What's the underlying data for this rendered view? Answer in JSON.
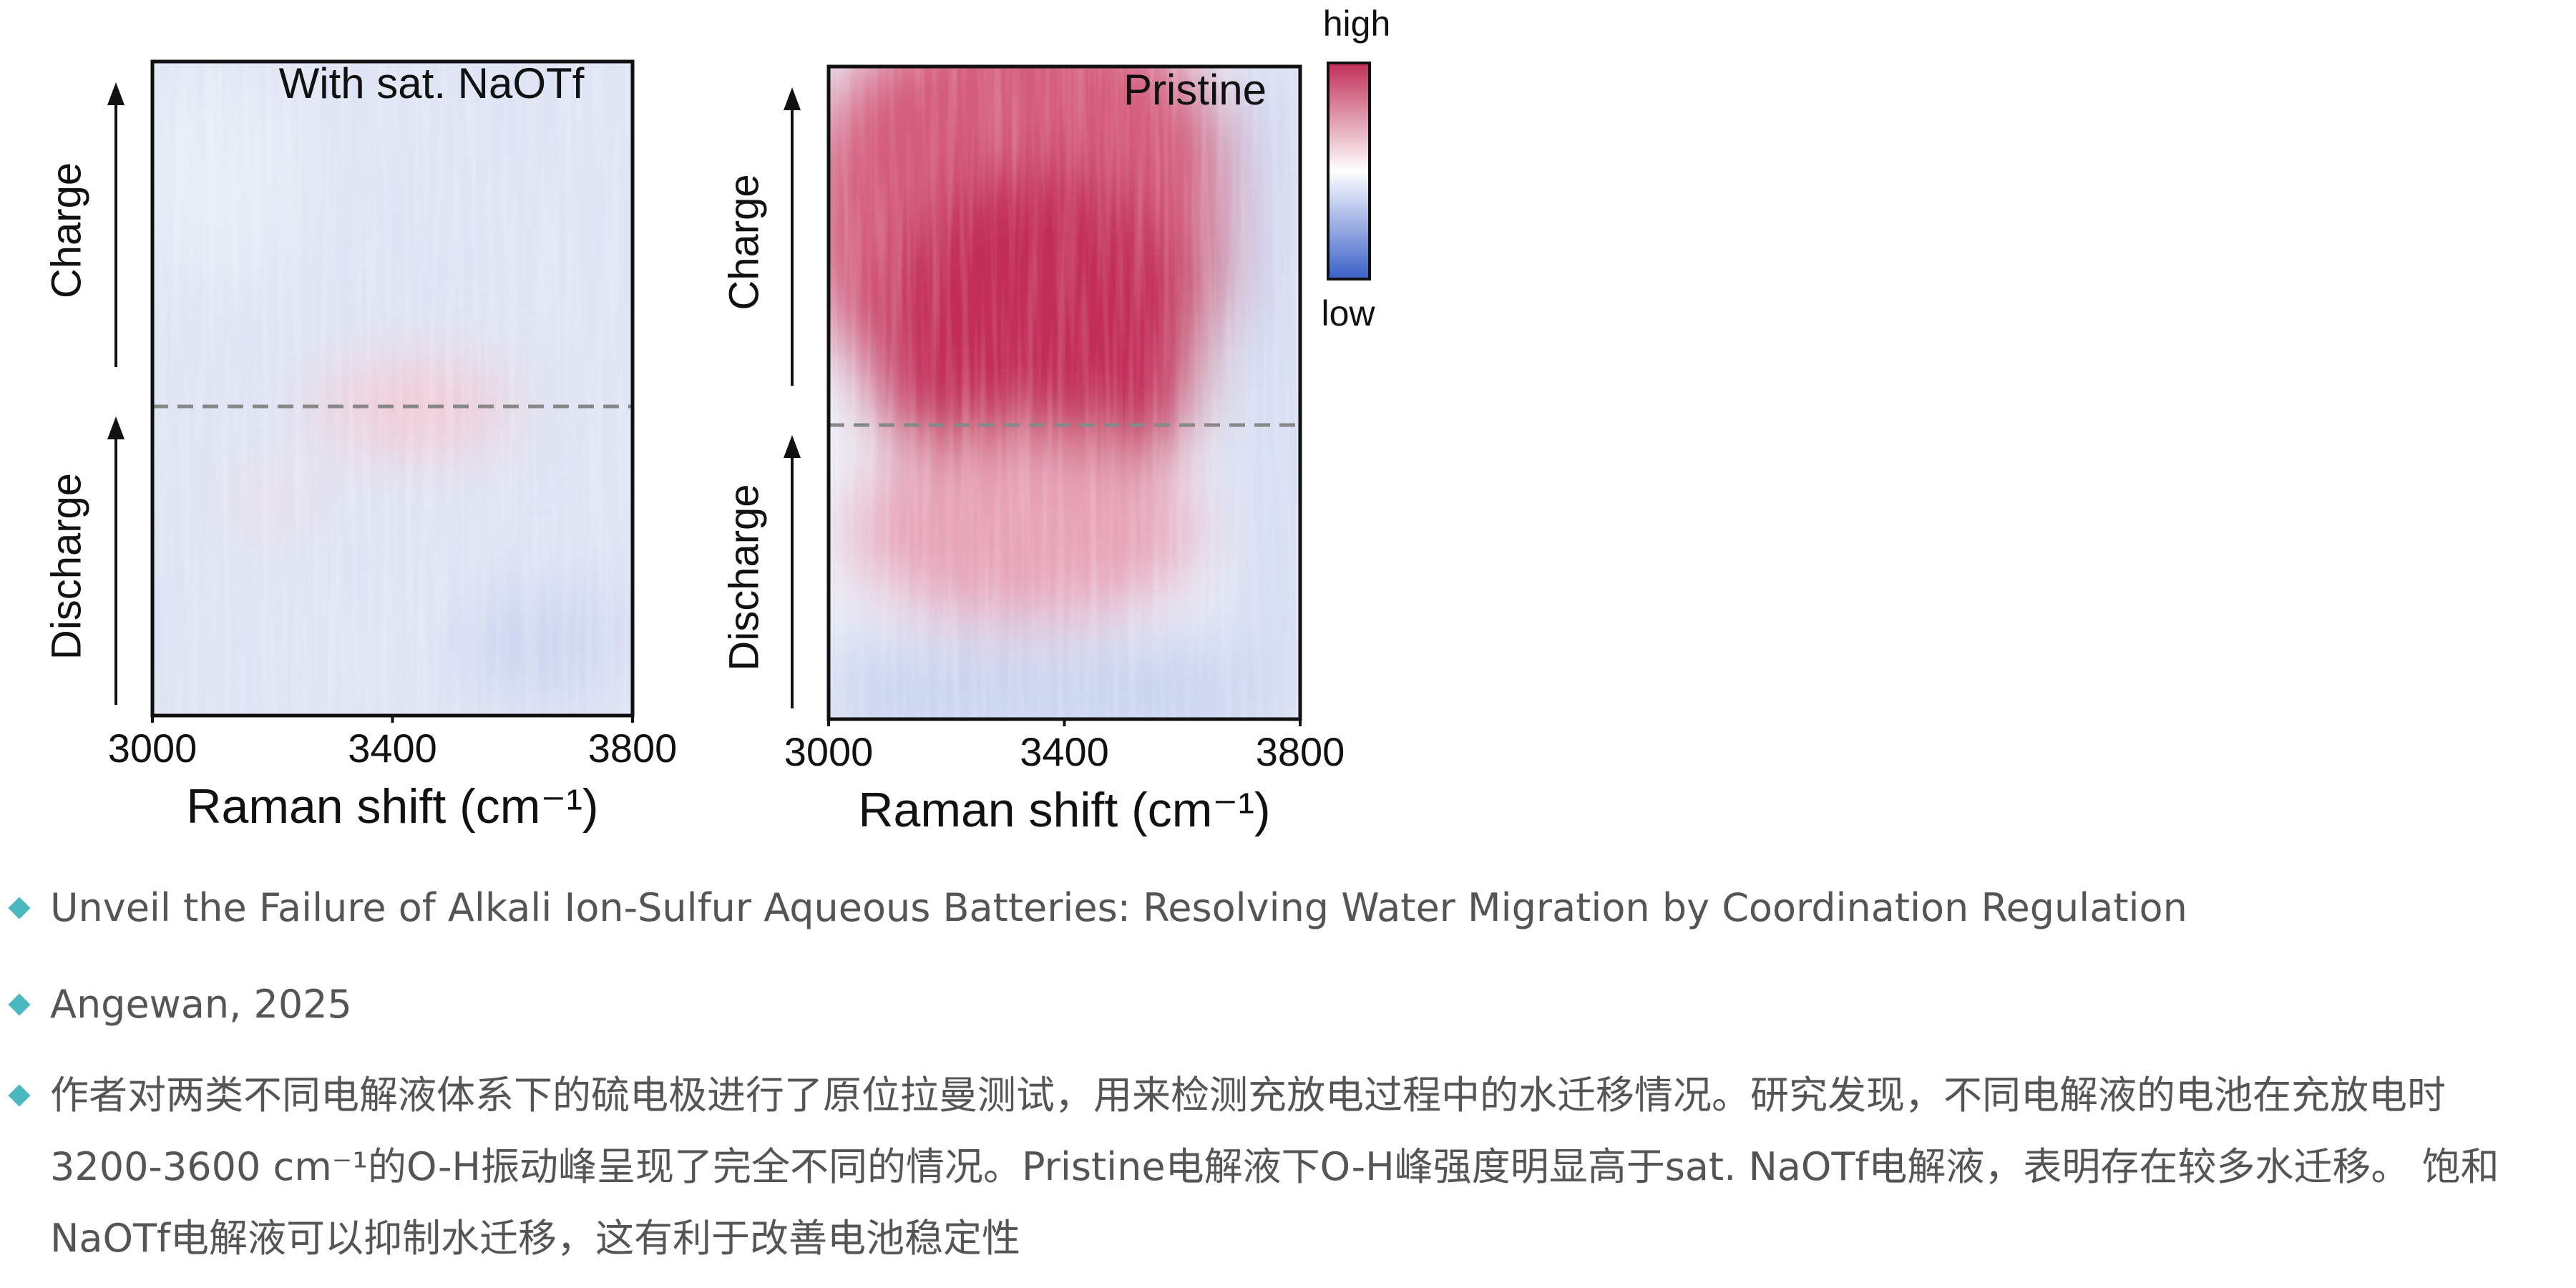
{
  "figure": {
    "panels": [
      {
        "title": "With sat. NaOTf",
        "xlabel": "Raman shift (cm⁻¹)",
        "xlim": [
          3000,
          3800
        ],
        "xticks": [
          3000,
          3400,
          3800
        ],
        "ylabels": [
          "Charge",
          "Discharge"
        ]
      },
      {
        "title": "Pristine",
        "xlabel": "Raman shift (cm⁻¹)",
        "xlim": [
          3000,
          3800
        ],
        "xticks": [
          3000,
          3400,
          3800
        ],
        "ylabels": [
          "Charge",
          "Discharge"
        ]
      }
    ],
    "colorbar": {
      "high": "high",
      "low": "low"
    }
  },
  "bullets": [
    "Unveil the Failure of Alkali Ion-Sulfur Aqueous Batteries: Resolving Water Migration by Coordination Regulation",
    "Angewan, 2025",
    "作者对两类不同电解液体系下的硫电极进行了原位拉曼测试，用来检测充放电过程中的水迁移情况。研究发现，不同电解液的电池在充放电时3200-3600 cm⁻¹的O-H振动峰呈现了完全不同的情况。Pristine电解液下O-H峰强度明显高于sat. NaOTf电解液，表明存在较多水迁移。 饱和NaOTf电解液可以抑制水迁移，这有利于改善电池稳定性"
  ]
}
